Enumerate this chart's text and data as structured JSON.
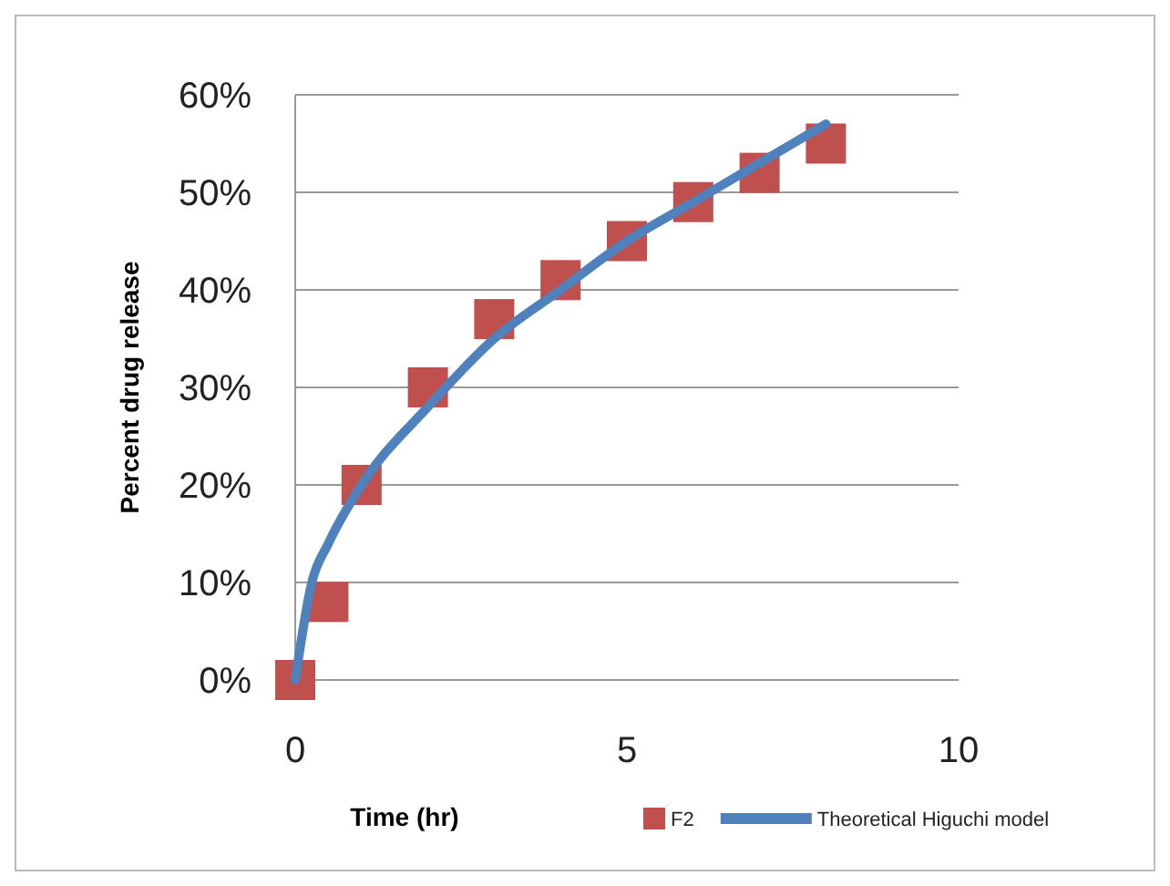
{
  "chart_data": {
    "type": "scatter",
    "xlabel": "Time (hr)",
    "ylabel": "Percent drug release",
    "xlim": [
      0,
      10
    ],
    "xticks": [
      0,
      5,
      10
    ],
    "ylim": [
      0,
      60
    ],
    "yticks": [
      {
        "value": 0,
        "label": "0%"
      },
      {
        "value": 10,
        "label": "10%"
      },
      {
        "value": 20,
        "label": "20%"
      },
      {
        "value": 30,
        "label": "30%"
      },
      {
        "value": 40,
        "label": "40%"
      },
      {
        "value": 50,
        "label": "50%"
      },
      {
        "value": 60,
        "label": "60%"
      }
    ],
    "grid": "y",
    "legend": "bottom",
    "series": [
      {
        "name": "F2",
        "marker": "square",
        "color": "#c0504d",
        "x": [
          0,
          0.5,
          1,
          2,
          3,
          4,
          5,
          6,
          7,
          8
        ],
        "values": [
          0,
          8,
          20,
          30,
          37,
          41,
          45,
          49,
          52,
          55
        ]
      },
      {
        "name": "Theoretical Higuchi model",
        "type": "line",
        "marker": "none",
        "line_style": "solid",
        "color": "#4f81bd",
        "x": [
          0,
          0.25,
          0.5,
          1,
          2,
          3,
          4,
          5,
          6,
          7,
          8
        ],
        "values": [
          0,
          10,
          14,
          20,
          28,
          35,
          40,
          45,
          49,
          53,
          57
        ]
      }
    ]
  }
}
